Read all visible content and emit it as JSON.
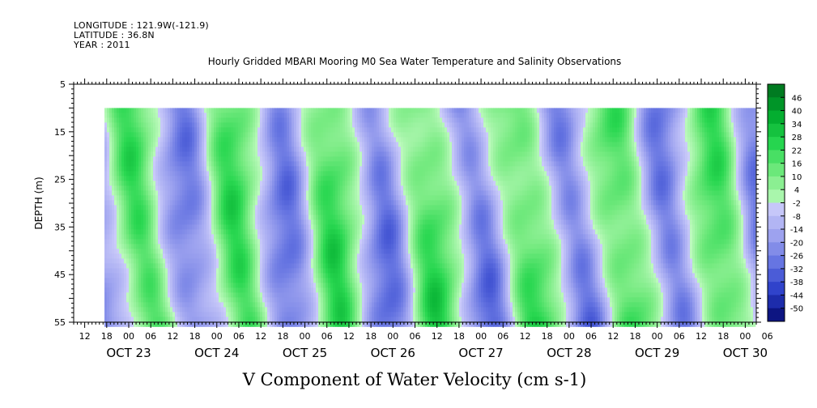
{
  "header": {
    "longitude": "LONGITUDE : 121.9W(-121.9)",
    "latitude": "LATITUDE : 36.8N",
    "year": "YEAR : 2011"
  },
  "chart_data": {
    "type": "heatmap",
    "title": "Hourly Gridded MBARI Mooring M0 Sea Water Temperature and Salinity Observations",
    "xlabel": "V Component of Water Velocity (cm s-1)",
    "ylabel": "DEPTH (m)",
    "y_ticks": [
      "5",
      "15",
      "25",
      "35",
      "45",
      "55"
    ],
    "ylim": [
      5,
      55
    ],
    "y_inverted": true,
    "data_depth_range": [
      10,
      55
    ],
    "x_hour_ticks": [
      "12",
      "18",
      "00",
      "06",
      "12",
      "18",
      "00",
      "06",
      "12",
      "18",
      "00",
      "06",
      "12",
      "18",
      "00",
      "06",
      "12",
      "18",
      "00",
      "06",
      "12",
      "18",
      "00",
      "06",
      "12",
      "18",
      "00",
      "06",
      "12",
      "18",
      "00",
      "06"
    ],
    "x_hour_start": 12,
    "x_date_labels": [
      "OCT 23",
      "OCT 24",
      "OCT 25",
      "OCT 26",
      "OCT 27",
      "OCT 28",
      "OCT 29",
      "OCT 30"
    ],
    "colorbar": {
      "labels": [
        "46",
        "40",
        "34",
        "28",
        "22",
        "16",
        "10",
        "4",
        "-2",
        "-8",
        "-14",
        "-20",
        "-26",
        "-32",
        "-38",
        "-44",
        "-50"
      ],
      "range": [
        -50,
        52
      ],
      "positive_color": "#00a030",
      "negative_color": "#1e32c8"
    },
    "grid": false,
    "legend_position": "right"
  }
}
